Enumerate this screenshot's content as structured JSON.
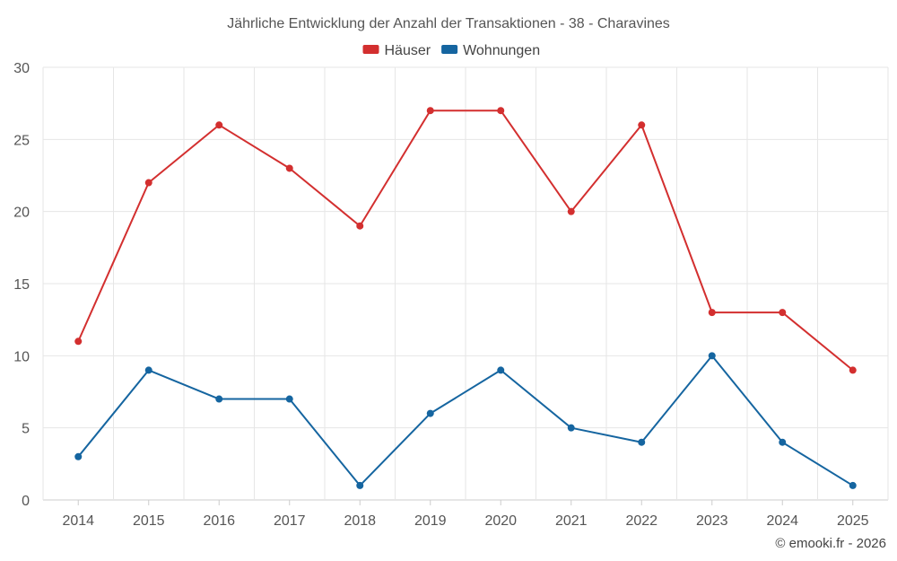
{
  "chart_data": {
    "type": "line",
    "title": "Jährliche Entwicklung der Anzahl der Transaktionen - 38 - Charavines",
    "categories": [
      "2014",
      "2015",
      "2016",
      "2017",
      "2018",
      "2019",
      "2020",
      "2021",
      "2022",
      "2023",
      "2024",
      "2025"
    ],
    "series": [
      {
        "name": "Häuser",
        "color": "#d32f2f",
        "values": [
          11,
          22,
          26,
          23,
          19,
          27,
          27,
          20,
          26,
          13,
          13,
          9
        ]
      },
      {
        "name": "Wohnungen",
        "color": "#1565a0",
        "values": [
          3,
          9,
          7,
          7,
          1,
          6,
          9,
          5,
          4,
          10,
          4,
          1
        ]
      }
    ],
    "ylim": [
      0,
      30
    ],
    "yticks": [
      0,
      5,
      10,
      15,
      20,
      25,
      30
    ],
    "xlabel": "",
    "ylabel": "",
    "grid": true,
    "legend_position": "top-center"
  },
  "credit": "© emooki.fr - 2026"
}
